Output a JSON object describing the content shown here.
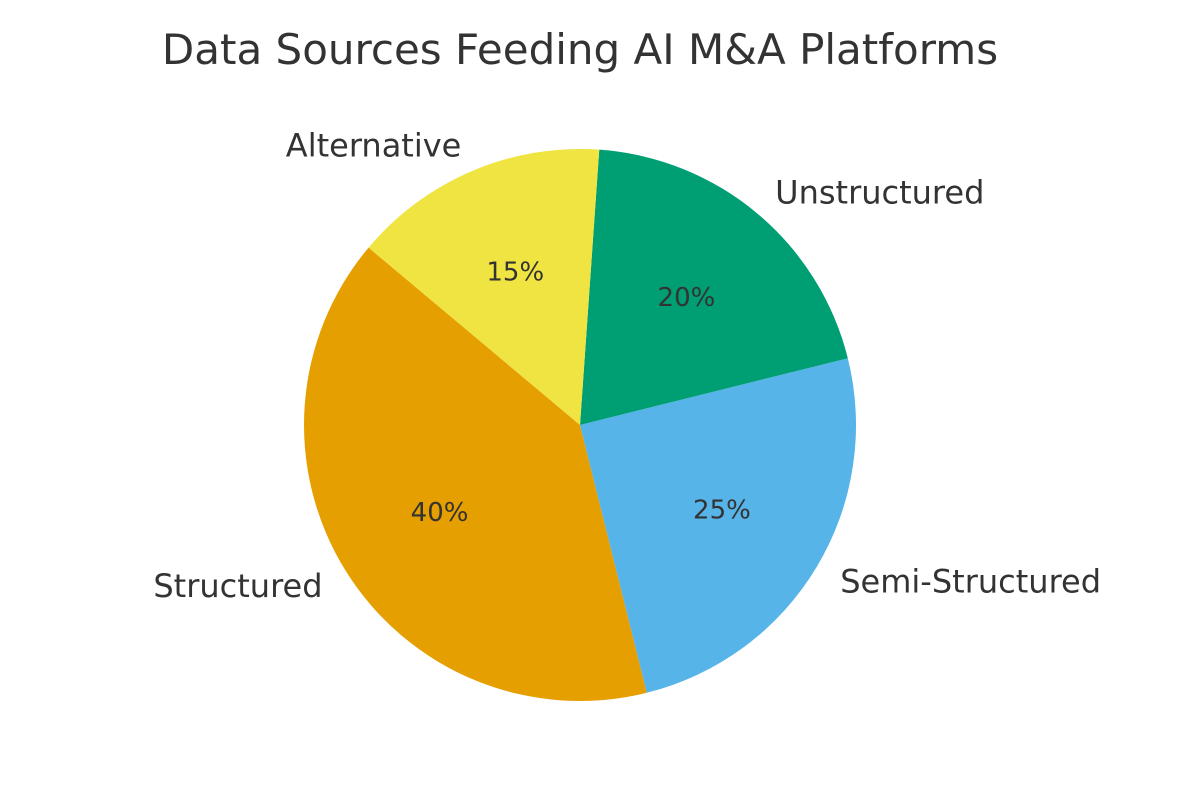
{
  "chart_data": {
    "type": "pie",
    "title": "Data Sources Feeding AI M&A Platforms",
    "slices": [
      {
        "label": "Structured",
        "value": 40,
        "pct_label": "40%",
        "color": "#E69F00"
      },
      {
        "label": "Semi-Structured",
        "value": 25,
        "pct_label": "25%",
        "color": "#56B4E9"
      },
      {
        "label": "Unstructured",
        "value": 20,
        "pct_label": "20%",
        "color": "#009E73"
      },
      {
        "label": "Alternative",
        "value": 15,
        "pct_label": "15%",
        "color": "#F0E442"
      }
    ],
    "start_angle_deg": 140,
    "direction": "counterclockwise",
    "legend": "none"
  }
}
